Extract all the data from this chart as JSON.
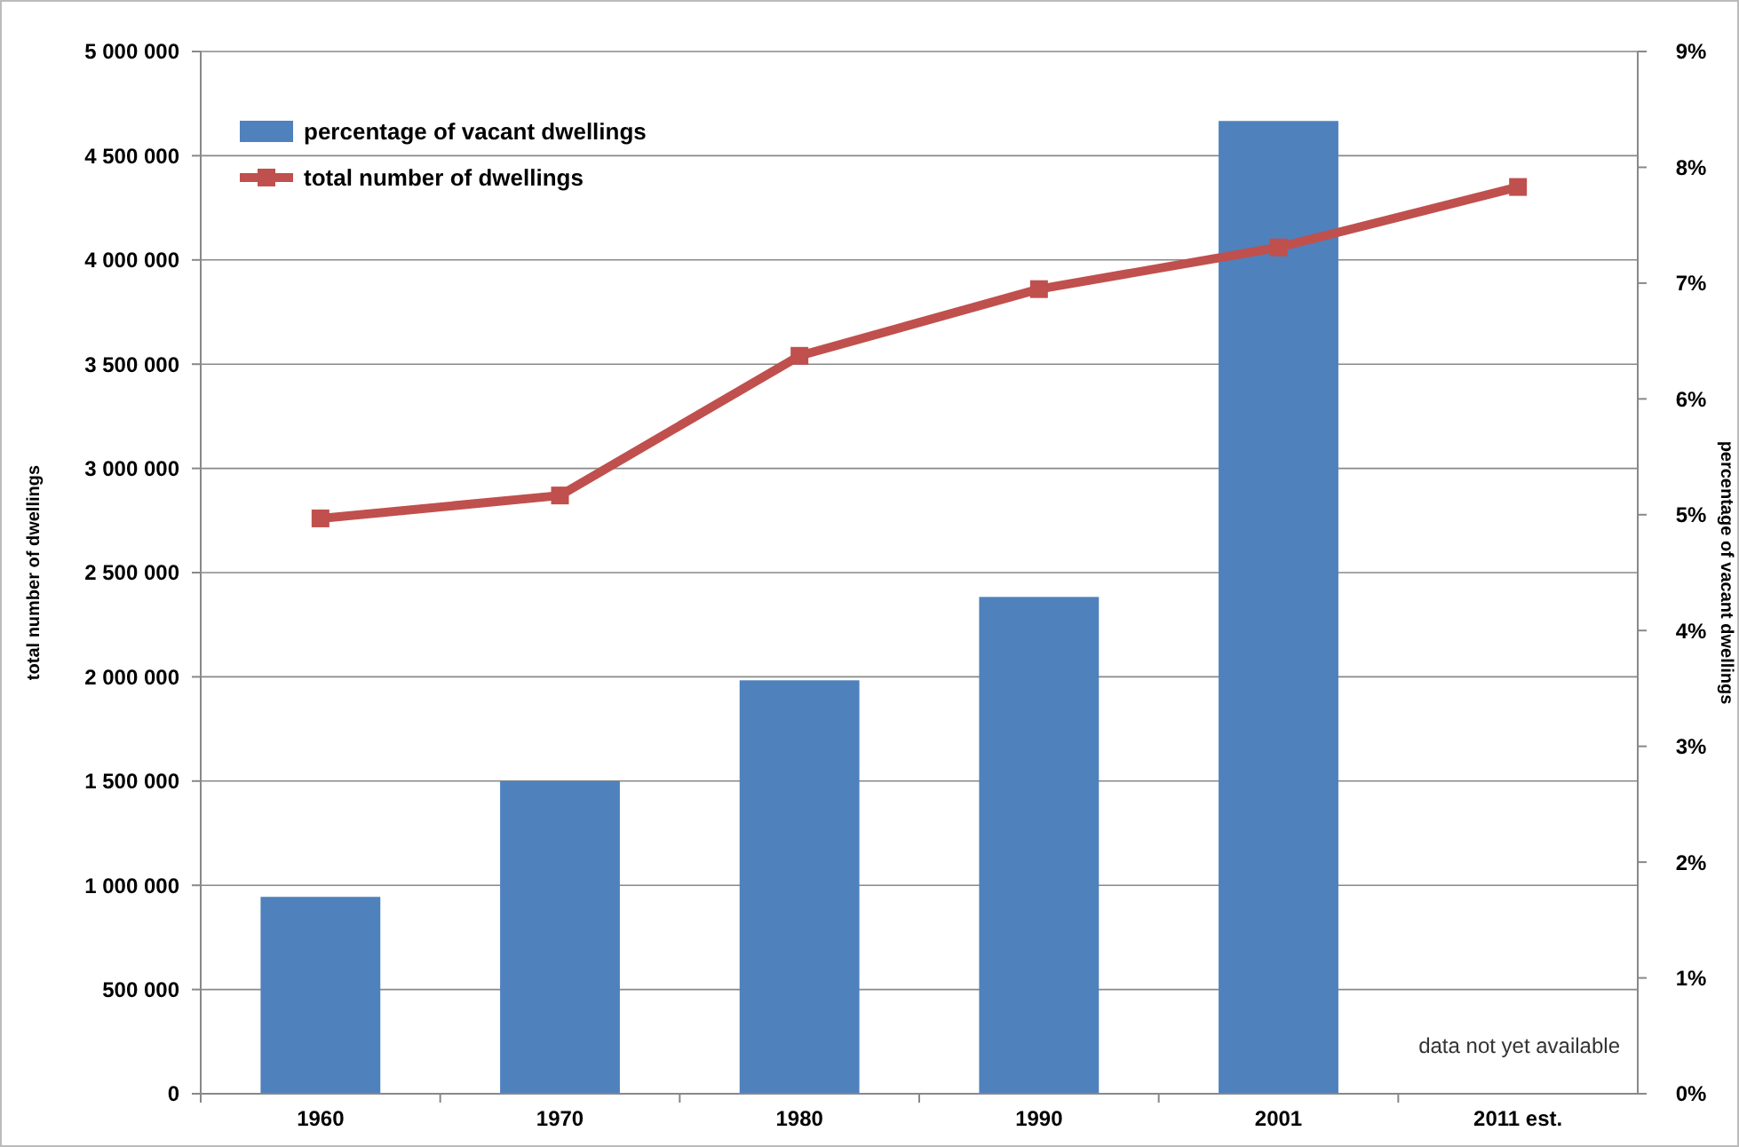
{
  "chart_data": {
    "type": "bar",
    "xlabel": null,
    "ylabel": "total number of dwellings",
    "y2label": "percentage of vacant dwellings",
    "categories": [
      "1960",
      "1970",
      "1980",
      "1990",
      "2001",
      "2011 est."
    ],
    "series": [
      {
        "name": "percentage of vacant dwellings",
        "axis": "y2",
        "color": "#4f81bd",
        "values": [
          1.7,
          2.7,
          3.57,
          4.29,
          8.4,
          null
        ]
      },
      {
        "name": "total number of dwellings",
        "type": "line",
        "axis": "y",
        "color": "#c0504d",
        "marker": "square",
        "values": [
          2760000,
          2870000,
          3540000,
          3860000,
          4060000,
          4350000
        ]
      }
    ],
    "ylim": [
      0,
      5000000
    ],
    "yticks": [
      {
        "value": 0,
        "label": "0"
      },
      {
        "value": 500000,
        "label": "500 000"
      },
      {
        "value": 1000000,
        "label": "1 000 000"
      },
      {
        "value": 1500000,
        "label": "1 500 000"
      },
      {
        "value": 2000000,
        "label": "2 000 000"
      },
      {
        "value": 2500000,
        "label": "2 500 000"
      },
      {
        "value": 3000000,
        "label": "3 000 000"
      },
      {
        "value": 3500000,
        "label": "3 500 000"
      },
      {
        "value": 4000000,
        "label": "4 000 000"
      },
      {
        "value": 4500000,
        "label": "4 500 000"
      },
      {
        "value": 5000000,
        "label": "5 000 000"
      }
    ],
    "y2lim": [
      0,
      9
    ],
    "y2ticks": [
      {
        "value": 0,
        "label": "0%"
      },
      {
        "value": 1,
        "label": "1%"
      },
      {
        "value": 2,
        "label": "2%"
      },
      {
        "value": 3,
        "label": "3%"
      },
      {
        "value": 4,
        "label": "4%"
      },
      {
        "value": 5,
        "label": "5%"
      },
      {
        "value": 6,
        "label": "6%"
      },
      {
        "value": 7,
        "label": "7%"
      },
      {
        "value": 8,
        "label": "8%"
      },
      {
        "value": 9,
        "label": "9%"
      }
    ],
    "grid": "y",
    "legend": "top left",
    "annotations": [
      "data not yet available"
    ]
  }
}
